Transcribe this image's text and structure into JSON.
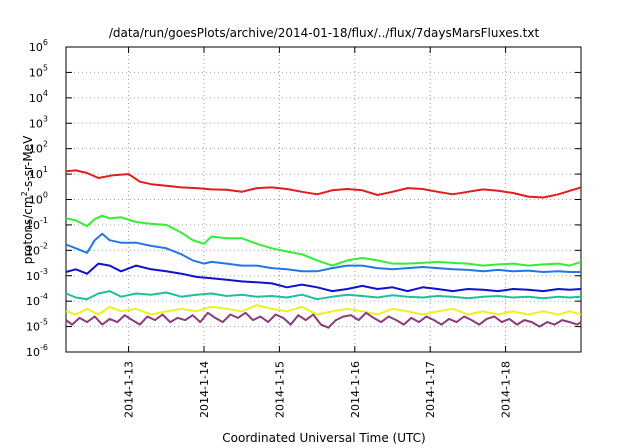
{
  "chart_data": {
    "type": "line",
    "title": "/data/run/goesPlots/archive/2014-01-18/flux/../flux/7daysMarsFluxes.txt",
    "xlabel": "Coordinated Universal Time (UTC)",
    "ylabel_parts": [
      "protons/cm",
      "2",
      "-s-sr-MeV"
    ],
    "yscale": "log",
    "ylim": [
      1e-06,
      1000000.0
    ],
    "xlim": [
      "2014-01-12 04:00",
      "2014-01-19 00:00"
    ],
    "grid": true,
    "x_tick_labels": [
      "2014-1-13",
      "2014-1-14",
      "2014-1-15",
      "2014-1-16",
      "2014-1-17",
      "2014-1-18"
    ],
    "x_tick_days": [
      1,
      2,
      3,
      4,
      5,
      6
    ],
    "x_start_day": 0.17,
    "x_end_day": 7.0,
    "y_ticks": [
      {
        "base": "10",
        "exp": "-6",
        "value": 1e-06
      },
      {
        "base": "10",
        "exp": "-5",
        "value": 1e-05
      },
      {
        "base": "10",
        "exp": "-4",
        "value": 0.0001
      },
      {
        "base": "10",
        "exp": "-3",
        "value": 0.001
      },
      {
        "base": "10",
        "exp": "-2",
        "value": 0.01
      },
      {
        "base": "10",
        "exp": "-1",
        "value": 0.1
      },
      {
        "base": "10",
        "exp": "0",
        "value": 1
      },
      {
        "base": "10",
        "exp": "1",
        "value": 10
      },
      {
        "base": "10",
        "exp": "2",
        "value": 100
      },
      {
        "base": "10",
        "exp": "3",
        "value": 1000
      },
      {
        "base": "10",
        "exp": "4",
        "value": 10000
      },
      {
        "base": "10",
        "exp": "5",
        "value": 100000
      },
      {
        "base": "10",
        "exp": "6",
        "value": 1000000
      }
    ],
    "series": [
      {
        "color": "#e41a1c",
        "x": [
          0.17,
          0.3,
          0.45,
          0.6,
          0.8,
          1.0,
          1.15,
          1.3,
          1.5,
          1.7,
          1.9,
          2.1,
          2.3,
          2.5,
          2.7,
          2.9,
          3.1,
          3.3,
          3.5,
          3.7,
          3.9,
          4.1,
          4.3,
          4.5,
          4.7,
          4.9,
          5.1,
          5.3,
          5.5,
          5.7,
          5.9,
          6.1,
          6.3,
          6.5,
          6.7,
          6.85,
          7.0
        ],
        "values": [
          13,
          14,
          11,
          7,
          9,
          10,
          5,
          4,
          3.5,
          3,
          2.8,
          2.5,
          2.4,
          2.0,
          2.8,
          3.0,
          2.6,
          2.0,
          1.6,
          2.3,
          2.6,
          2.3,
          1.5,
          2.0,
          2.8,
          2.6,
          2.0,
          1.6,
          2.0,
          2.5,
          2.2,
          1.8,
          1.3,
          1.2,
          1.6,
          2.2,
          3.0
        ]
      },
      {
        "color": "#33ee33",
        "x": [
          0.17,
          0.3,
          0.45,
          0.55,
          0.65,
          0.75,
          0.9,
          1.1,
          1.3,
          1.5,
          1.7,
          1.85,
          2.0,
          2.1,
          2.3,
          2.5,
          2.7,
          2.9,
          3.1,
          3.3,
          3.5,
          3.7,
          3.9,
          4.1,
          4.3,
          4.5,
          4.7,
          4.9,
          5.1,
          5.3,
          5.5,
          5.7,
          5.9,
          6.1,
          6.3,
          6.5,
          6.7,
          6.85,
          7.0
        ],
        "values": [
          0.18,
          0.15,
          0.09,
          0.17,
          0.23,
          0.18,
          0.2,
          0.13,
          0.11,
          0.1,
          0.05,
          0.025,
          0.018,
          0.035,
          0.03,
          0.03,
          0.018,
          0.012,
          0.009,
          0.007,
          0.004,
          0.0025,
          0.004,
          0.005,
          0.004,
          0.003,
          0.003,
          0.0032,
          0.0035,
          0.0032,
          0.003,
          0.0025,
          0.0028,
          0.003,
          0.0025,
          0.0028,
          0.003,
          0.0025,
          0.0035
        ]
      },
      {
        "color": "#1f78e6",
        "x": [
          0.17,
          0.3,
          0.45,
          0.55,
          0.65,
          0.75,
          0.9,
          1.1,
          1.3,
          1.5,
          1.7,
          1.85,
          2.0,
          2.1,
          2.3,
          2.5,
          2.7,
          2.9,
          3.1,
          3.3,
          3.5,
          3.7,
          3.9,
          4.1,
          4.3,
          4.5,
          4.7,
          4.9,
          5.1,
          5.3,
          5.5,
          5.7,
          5.9,
          6.1,
          6.3,
          6.5,
          6.7,
          6.85,
          7.0
        ],
        "values": [
          0.017,
          0.012,
          0.008,
          0.025,
          0.045,
          0.025,
          0.02,
          0.02,
          0.015,
          0.012,
          0.007,
          0.004,
          0.003,
          0.0035,
          0.003,
          0.0025,
          0.0025,
          0.002,
          0.0018,
          0.0015,
          0.0015,
          0.002,
          0.0025,
          0.0025,
          0.002,
          0.0018,
          0.002,
          0.0022,
          0.002,
          0.0018,
          0.0017,
          0.0015,
          0.0017,
          0.0015,
          0.0016,
          0.0014,
          0.0015,
          0.0014,
          0.0014
        ]
      },
      {
        "color": "#1010d0",
        "x": [
          0.17,
          0.3,
          0.45,
          0.6,
          0.75,
          0.9,
          1.1,
          1.3,
          1.5,
          1.7,
          1.9,
          2.1,
          2.3,
          2.5,
          2.7,
          2.9,
          3.1,
          3.3,
          3.5,
          3.7,
          3.9,
          4.1,
          4.3,
          4.5,
          4.7,
          4.9,
          5.1,
          5.3,
          5.5,
          5.7,
          5.9,
          6.1,
          6.3,
          6.5,
          6.7,
          6.85,
          7.0
        ],
        "values": [
          0.0014,
          0.0018,
          0.0012,
          0.003,
          0.0025,
          0.0015,
          0.0025,
          0.0018,
          0.0015,
          0.0012,
          0.0009,
          0.0008,
          0.0007,
          0.0006,
          0.00055,
          0.0005,
          0.00035,
          0.00045,
          0.00035,
          0.00025,
          0.0003,
          0.0004,
          0.0003,
          0.00035,
          0.00025,
          0.00035,
          0.0003,
          0.00025,
          0.0003,
          0.00028,
          0.00025,
          0.0003,
          0.00028,
          0.00025,
          0.0003,
          0.00028,
          0.0003
        ]
      },
      {
        "color": "#1fbe9c",
        "x": [
          0.17,
          0.3,
          0.45,
          0.6,
          0.75,
          0.9,
          1.1,
          1.3,
          1.5,
          1.7,
          1.9,
          2.1,
          2.3,
          2.5,
          2.7,
          2.9,
          3.1,
          3.3,
          3.5,
          3.7,
          3.9,
          4.1,
          4.3,
          4.5,
          4.7,
          4.9,
          5.1,
          5.3,
          5.5,
          5.7,
          5.9,
          6.1,
          6.3,
          6.5,
          6.7,
          6.85,
          7.0
        ],
        "values": [
          0.0002,
          0.00014,
          0.00012,
          0.0002,
          0.00025,
          0.00015,
          0.0002,
          0.00018,
          0.00022,
          0.00015,
          0.00018,
          0.0002,
          0.00016,
          0.00018,
          0.00015,
          0.00016,
          0.00014,
          0.00018,
          0.00012,
          0.00015,
          0.00018,
          0.00016,
          0.00014,
          0.00017,
          0.00015,
          0.00014,
          0.00016,
          0.00015,
          0.00013,
          0.00015,
          0.00016,
          0.00014,
          0.00015,
          0.00013,
          0.00015,
          0.00014,
          0.00015
        ]
      },
      {
        "color": "#f0f020",
        "x": [
          0.17,
          0.3,
          0.45,
          0.6,
          0.75,
          0.9,
          1.1,
          1.3,
          1.5,
          1.7,
          1.9,
          2.1,
          2.3,
          2.5,
          2.7,
          2.9,
          3.1,
          3.3,
          3.5,
          3.7,
          3.9,
          4.1,
          4.3,
          4.5,
          4.7,
          4.9,
          5.1,
          5.3,
          5.5,
          5.7,
          5.9,
          6.1,
          6.3,
          6.5,
          6.7,
          6.85,
          7.0
        ],
        "values": [
          4e-05,
          3e-05,
          5e-05,
          3e-05,
          6e-05,
          4e-05,
          5e-05,
          3e-05,
          4e-05,
          5e-05,
          4e-05,
          6e-05,
          5e-05,
          4e-05,
          7e-05,
          5e-05,
          4e-05,
          6e-05,
          3e-05,
          4e-05,
          5e-05,
          4e-05,
          3e-05,
          5e-05,
          4e-05,
          3e-05,
          4e-05,
          5e-05,
          3e-05,
          4e-05,
          3e-05,
          4e-05,
          3e-05,
          4e-05,
          3e-05,
          4e-05,
          3e-05
        ]
      },
      {
        "color": "#8b3a7a",
        "x": [
          0.17,
          0.25,
          0.35,
          0.45,
          0.55,
          0.65,
          0.75,
          0.85,
          0.95,
          1.05,
          1.15,
          1.25,
          1.35,
          1.45,
          1.55,
          1.65,
          1.75,
          1.85,
          1.95,
          2.05,
          2.15,
          2.25,
          2.35,
          2.45,
          2.55,
          2.65,
          2.75,
          2.85,
          2.95,
          3.05,
          3.15,
          3.25,
          3.35,
          3.45,
          3.55,
          3.65,
          3.75,
          3.85,
          3.95,
          4.05,
          4.15,
          4.25,
          4.35,
          4.45,
          4.55,
          4.65,
          4.75,
          4.85,
          4.95,
          5.05,
          5.15,
          5.25,
          5.35,
          5.45,
          5.55,
          5.65,
          5.75,
          5.85,
          5.95,
          6.05,
          6.15,
          6.25,
          6.35,
          6.45,
          6.55,
          6.65,
          6.75,
          6.85,
          6.95,
          7.0
        ],
        "values": [
          1.8e-05,
          1.2e-05,
          2.2e-05,
          1.5e-05,
          2.5e-05,
          1.2e-05,
          2e-05,
          1.5e-05,
          2.8e-05,
          1.8e-05,
          1.2e-05,
          2.5e-05,
          1.8e-05,
          3e-05,
          1.5e-05,
          2.2e-05,
          1.8e-05,
          2.8e-05,
          1.5e-05,
          3.5e-05,
          2.2e-05,
          1.5e-05,
          3e-05,
          2.2e-05,
          3.5e-05,
          1.8e-05,
          2.5e-05,
          1.5e-05,
          3e-05,
          2.2e-05,
          1.2e-05,
          2.8e-05,
          1.8e-05,
          3e-05,
          1.2e-05,
          9e-06,
          1.8e-05,
          2.5e-05,
          2.8e-05,
          1.8e-05,
          3.5e-05,
          2.2e-05,
          1.5e-05,
          2.5e-05,
          1.8e-05,
          1.2e-05,
          2.2e-05,
          1.5e-05,
          2.5e-05,
          1.8e-05,
          1.2e-05,
          2e-05,
          1.5e-05,
          2.5e-05,
          1.8e-05,
          1.2e-05,
          2e-05,
          2.5e-05,
          1.5e-05,
          2e-05,
          1.2e-05,
          1.8e-05,
          1.5e-05,
          1e-05,
          1.5e-05,
          1.2e-05,
          1.8e-05,
          1.5e-05,
          1.2e-05,
          1.5e-05
        ]
      }
    ]
  }
}
